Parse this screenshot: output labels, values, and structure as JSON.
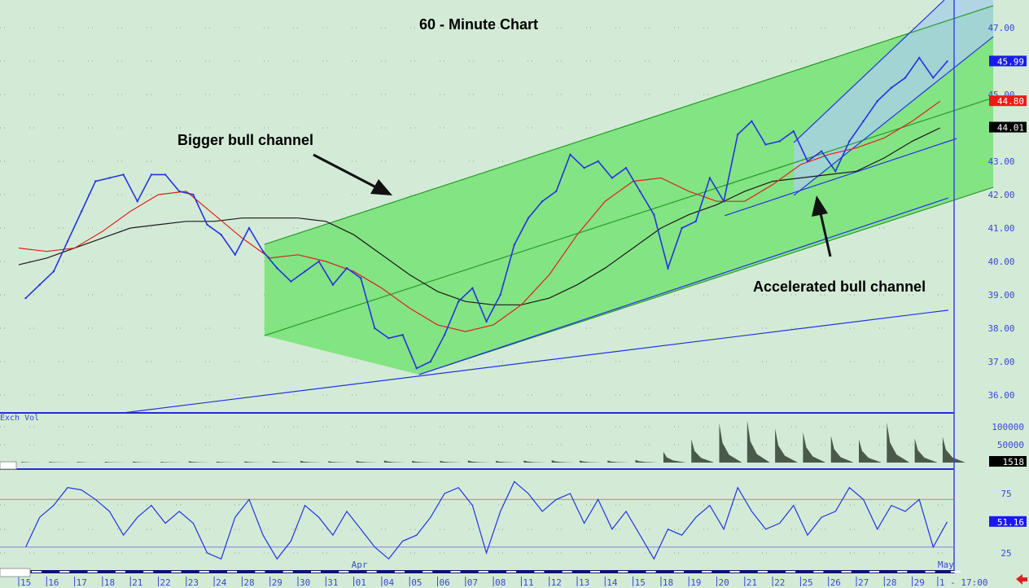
{
  "chart_data": {
    "type": "line",
    "title": "60 - Minute Chart",
    "annotations": [
      "Bigger bull channel",
      "Accelerated bull channel"
    ],
    "categories": [
      "15",
      "16",
      "17",
      "18",
      "21",
      "22",
      "23",
      "24",
      "28",
      "29",
      "30",
      "31",
      "01",
      "04",
      "05",
      "06",
      "07",
      "08",
      "11",
      "12",
      "13",
      "14",
      "15",
      "18",
      "19",
      "20",
      "21",
      "22",
      "25",
      "26",
      "27",
      "28",
      "29",
      "1 - 17:00"
    ],
    "month_labels": [
      {
        "label": "Apr",
        "at": "01"
      },
      {
        "label": "May",
        "at": "1 - 17:00"
      }
    ],
    "price_axis": {
      "ylim": [
        35.5,
        47.8
      ],
      "ticks": [
        "47.00",
        "45.00",
        "43.00",
        "42.00",
        "41.00",
        "40.00",
        "39.00",
        "38.00",
        "37.00",
        "36.00"
      ]
    },
    "price_series_halfday": [
      38.9,
      39.3,
      39.7,
      40.6,
      41.5,
      42.4,
      42.5,
      42.6,
      41.8,
      42.6,
      42.6,
      42.1,
      42.0,
      41.1,
      40.8,
      40.2,
      41.0,
      40.3,
      39.8,
      39.4,
      39.7,
      40.0,
      39.3,
      39.8,
      39.5,
      38.0,
      37.7,
      37.8,
      36.8,
      37.0,
      37.8,
      38.8,
      39.2,
      38.2,
      39.0,
      40.5,
      41.3,
      41.8,
      42.1,
      43.2,
      42.8,
      43.0,
      42.5,
      42.8,
      42.1,
      41.4,
      39.8,
      41.0,
      41.2,
      42.5,
      41.8,
      43.8,
      44.2,
      43.5,
      43.6,
      43.9,
      43.0,
      43.3,
      42.7,
      43.6,
      44.2,
      44.8,
      45.2,
      45.5,
      46.1,
      45.5,
      45.99
    ],
    "moving_average_red_daily": [
      40.4,
      40.3,
      40.4,
      40.9,
      41.5,
      42.0,
      42.1,
      41.4,
      40.7,
      40.1,
      40.2,
      40.0,
      39.7,
      39.2,
      38.6,
      38.1,
      37.9,
      38.1,
      38.7,
      39.6,
      40.8,
      41.8,
      42.4,
      42.5,
      42.1,
      41.8,
      41.8,
      42.3,
      42.9,
      43.2,
      43.4,
      43.7,
      44.2,
      44.8
    ],
    "moving_average_black_daily": [
      39.9,
      40.1,
      40.4,
      40.7,
      41.0,
      41.1,
      41.2,
      41.2,
      41.3,
      41.3,
      41.3,
      41.2,
      40.8,
      40.2,
      39.6,
      39.1,
      38.8,
      38.7,
      38.7,
      38.9,
      39.3,
      39.8,
      40.4,
      41.0,
      41.4,
      41.7,
      42.1,
      42.4,
      42.5,
      42.6,
      42.7,
      43.1,
      43.6,
      44.0
    ],
    "last_values": {
      "price": "45.99",
      "ma_red": "44.80",
      "ma_black": "44.01",
      "volume": "1518",
      "rsi": "51.16"
    },
    "channels": {
      "bigger_upper": {
        "from": [
          8.8,
          40.51
        ],
        "to": [
          34.9,
          47.66
        ]
      },
      "bigger_middle": {
        "from": [
          8.8,
          37.78
        ],
        "to": [
          34.9,
          44.9
        ]
      },
      "bigger_lower": {
        "from": [
          14.34,
          36.61
        ],
        "to": [
          34.9,
          42.22
        ]
      },
      "support_blue": {
        "from": [
          14.34,
          36.61
        ],
        "to": [
          33.29,
          41.9
        ]
      },
      "long_trend_blue": {
        "from": [
          3.7,
          35.46
        ],
        "to": [
          33.29,
          38.54
        ]
      },
      "accel_support_blue": {
        "from": [
          25.28,
          41.37
        ],
        "to": [
          33.59,
          43.68
        ]
      },
      "accel_lower": {
        "from": [
          27.76,
          41.98
        ],
        "to": [
          34.9,
          46.73
        ]
      },
      "accel_upper": {
        "from": [
          27.76,
          43.56
        ],
        "to": [
          33.15,
          47.83
        ]
      }
    },
    "volume": {
      "label": "Exch Vol",
      "ticks": [
        "100000",
        "50000"
      ],
      "daily_peak": [
        2000,
        2500,
        2000,
        2500,
        3000,
        2500,
        4000,
        3000,
        3500,
        4000,
        5000,
        4000,
        5000,
        6000,
        5000,
        5000,
        6000,
        5000,
        6000,
        7000,
        6000,
        6000,
        8000,
        30000,
        65000,
        110000,
        118000,
        95000,
        85000,
        75000,
        65000,
        112000,
        68000,
        72000
      ]
    },
    "rsi": {
      "ticks": [
        "75",
        "25"
      ],
      "overbought": 70,
      "oversold": 30,
      "series_halfday": [
        30,
        55,
        65,
        80,
        78,
        70,
        60,
        40,
        55,
        65,
        50,
        60,
        50,
        25,
        20,
        55,
        70,
        40,
        20,
        35,
        65,
        55,
        40,
        60,
        45,
        30,
        20,
        35,
        40,
        55,
        75,
        80,
        65,
        25,
        60,
        85,
        75,
        60,
        70,
        75,
        50,
        70,
        45,
        60,
        40,
        20,
        45,
        40,
        55,
        65,
        45,
        80,
        60,
        45,
        50,
        65,
        40,
        55,
        60,
        80,
        70,
        45,
        65,
        60,
        70,
        30,
        51.16
      ]
    },
    "colors": {
      "background": "#d3ebd6",
      "price": "#2533e0",
      "ma_red": "#e0201c",
      "ma_black": "#1a1a1a",
      "channel_fill": "#74e374",
      "accel_fill": "#a9cfe6",
      "axis_text": "#3a46d8"
    }
  }
}
